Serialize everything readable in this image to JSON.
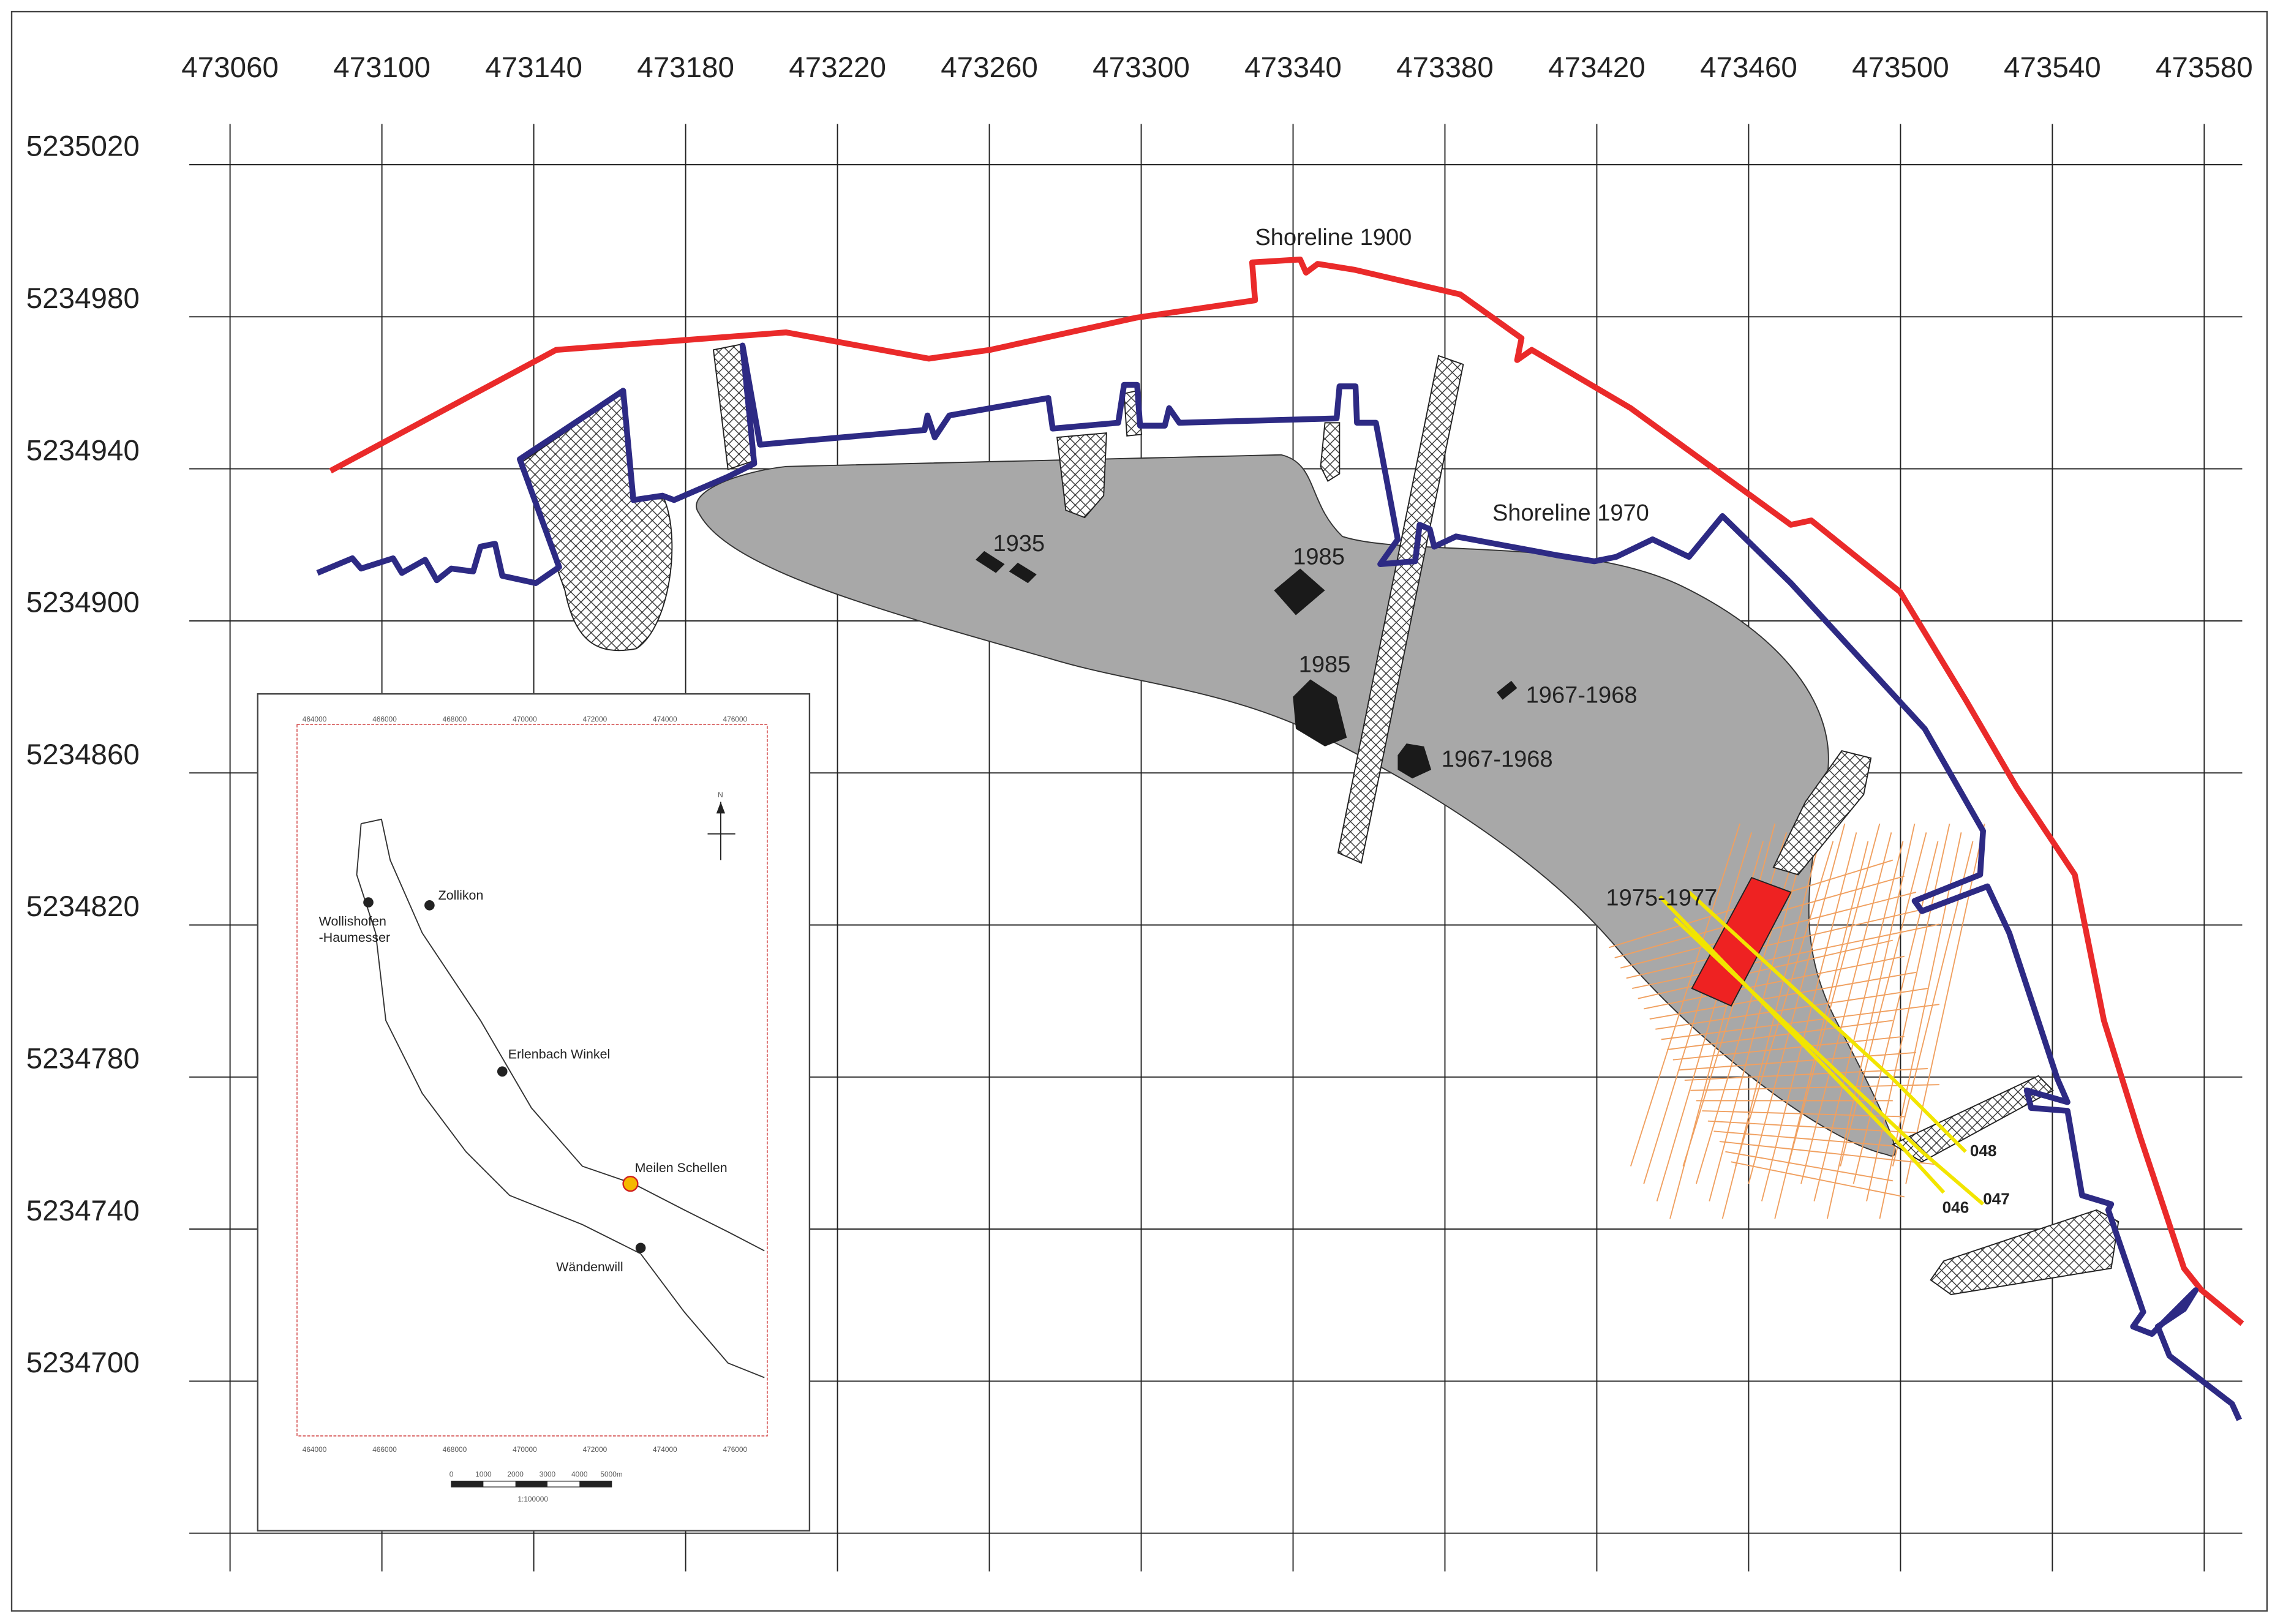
{
  "map": {
    "x_labels": [
      473060,
      473100,
      473140,
      473180,
      473220,
      473260,
      473300,
      473340,
      473380,
      473420,
      473460,
      473500,
      473540,
      473580
    ],
    "y_labels": [
      5235020,
      5234980,
      5234940,
      5234900,
      5234860,
      5234820,
      5234780,
      5234740,
      5234700
    ],
    "annotations": [
      "Shoreline 1900",
      "Shoreline 1970",
      "1935",
      "1985",
      "1985",
      "1967-1968",
      "1967-1968",
      "1975-1977",
      "048",
      "047",
      "046"
    ],
    "inset": {
      "places": [
        "Wollishofen",
        "-Haumesser",
        "Zollikon",
        "Erlenbach Winkel",
        "Meilen Schellen",
        "Wändenwill"
      ],
      "x_ticks": [
        464000,
        466000,
        468000,
        470000,
        472000,
        474000,
        476000
      ],
      "scale_labels": [
        "0",
        "1000",
        "2000",
        "3000",
        "4000",
        "5000m"
      ],
      "scale": "1:100000",
      "north": "N"
    }
  }
}
